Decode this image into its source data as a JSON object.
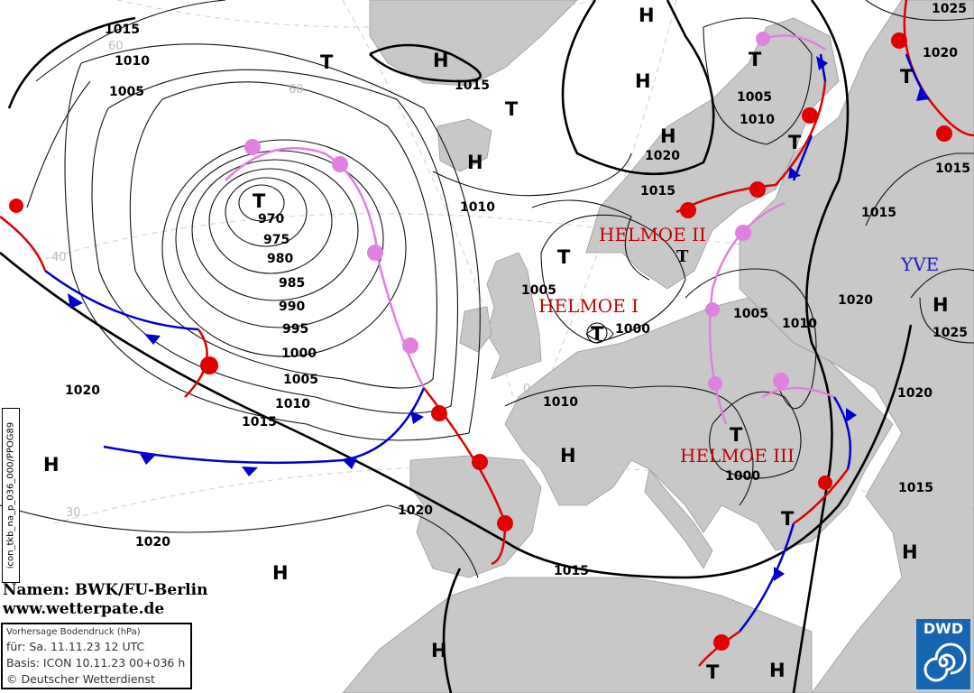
{
  "map": {
    "kind": "surface pressure forecast chart",
    "colors": {
      "land": "#c8c8c8",
      "sea": "#ffffff",
      "warm_front": "#e00000",
      "cold_front": "#0000cc",
      "occlusion": "#e080e0",
      "names": "#c00000",
      "name_blue": "#1a1acc"
    },
    "lows": [
      "T",
      "T",
      "T",
      "T",
      "T",
      "T",
      "T",
      "T",
      "T",
      "T",
      "T"
    ],
    "highs": [
      "H",
      "H",
      "H",
      "H",
      "H",
      "H",
      "H",
      "H",
      "H",
      "H",
      "H",
      "H"
    ],
    "systems": [
      {
        "name": "HELMOE I",
        "color": "#c00000"
      },
      {
        "name": "HELMOE II",
        "color": "#c00000"
      },
      {
        "name": "HELMOE III",
        "color": "#c00000"
      },
      {
        "name": "YVE",
        "color": "#1a1acc"
      }
    ],
    "isobar_labels": [
      "1015",
      "1010",
      "1005",
      "970",
      "975",
      "980",
      "985",
      "990",
      "995",
      "1000",
      "1005",
      "1010",
      "1015",
      "1020",
      "1015",
      "1010",
      "1020",
      "1015",
      "1005",
      "1000",
      "1010",
      "1020",
      "1015",
      "1005",
      "1010",
      "1005",
      "1010",
      "1020",
      "1025",
      "1000",
      "1015",
      "1025",
      "1020",
      "1015",
      "1020",
      "1015",
      "1020"
    ],
    "latitude_labels": [
      "40",
      "30",
      "60",
      "60",
      "0"
    ]
  },
  "credit": {
    "names": "Namen: BWK/FU-Berlin",
    "url": "www.wetterpate.de"
  },
  "info": {
    "title": "Vorhersage Bodendruck (hPa)",
    "valid": "für:  Sa. 11.11.23  12 UTC",
    "basis": "Basis: ICON  10.11.23 00+036 h",
    "copyright": "© Deutscher Wetterdienst"
  },
  "product_code": "icon_tkb_na_p_036_000/PPOG89",
  "logo": {
    "text": "DWD"
  }
}
